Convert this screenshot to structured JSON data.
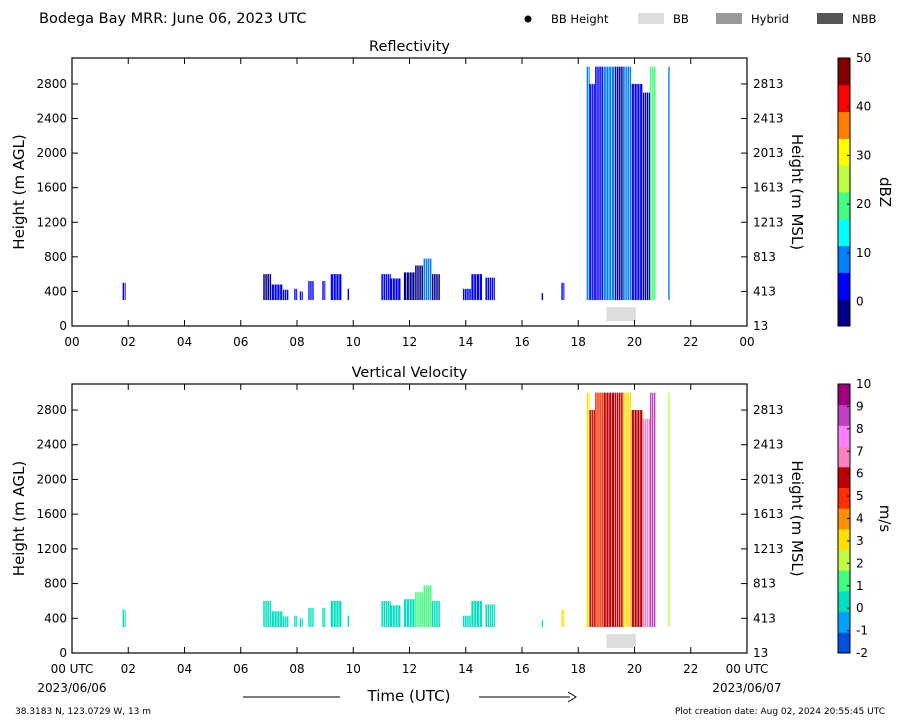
{
  "header": {
    "title": "Bodega Bay MRR:  June 06, 2023 UTC",
    "legend": [
      {
        "label": "BB Height",
        "kind": "dot",
        "color": "#000000"
      },
      {
        "label": "BB",
        "kind": "box",
        "color": "#dddddd"
      },
      {
        "label": "Hybrid",
        "kind": "box",
        "color": "#999999"
      },
      {
        "label": "NBB",
        "kind": "box",
        "color": "#555555"
      }
    ]
  },
  "footer": {
    "location": "38.3183 N, 123.0729 W, 13 m",
    "creation": "Plot creation date: Aug 02, 2024 20:55:45 UTC",
    "xlabel": "Time (UTC)",
    "start_date": "2023/06/06",
    "end_date": "2023/06/07"
  },
  "chart_data": [
    {
      "type": "heatmap",
      "title": "Reflectivity",
      "ylabel": "Height (m AGL)",
      "ylabel_right": "Height (m MSL)",
      "yticks": [
        0,
        400,
        800,
        1200,
        1600,
        2000,
        2400,
        2800
      ],
      "yticks_right": [
        "13",
        "413",
        "813",
        "1213",
        "1613",
        "2013",
        "2413",
        "2813"
      ],
      "xticks": [
        "00",
        "02",
        "04",
        "06",
        "08",
        "10",
        "12",
        "14",
        "16",
        "18",
        "20",
        "22",
        "00"
      ],
      "xlim": [
        0,
        24
      ],
      "ylim": [
        0,
        3100
      ],
      "colorbar": {
        "label": "dBZ",
        "range": [
          -5,
          50
        ],
        "ticks": [
          0,
          10,
          20,
          30,
          40,
          50
        ],
        "colors": [
          "#00008b",
          "#0000ff",
          "#0080ff",
          "#00ffff",
          "#40ff80",
          "#c0ff40",
          "#ffff00",
          "#ff8000",
          "#ff0000",
          "#800000"
        ]
      },
      "bb_markers": [
        {
          "start": 19.0,
          "end": 20.05
        }
      ],
      "cells": [
        {
          "t0": 1.8,
          "t1": 1.9,
          "h1": 500,
          "v": 2
        },
        {
          "t0": 6.8,
          "t1": 7.1,
          "h1": 600,
          "v": 0
        },
        {
          "t0": 7.1,
          "t1": 7.5,
          "h1": 480,
          "v": 1
        },
        {
          "t0": 7.5,
          "t1": 7.7,
          "h1": 420,
          "v": 2
        },
        {
          "t0": 7.9,
          "t1": 8.0,
          "h1": 430,
          "v": 1
        },
        {
          "t0": 8.1,
          "t1": 8.2,
          "h1": 400,
          "v": 1
        },
        {
          "t0": 8.4,
          "t1": 8.6,
          "h1": 520,
          "v": 2
        },
        {
          "t0": 8.9,
          "t1": 9.0,
          "h1": 520,
          "v": 1
        },
        {
          "t0": 9.2,
          "t1": 9.6,
          "h1": 600,
          "v": 1
        },
        {
          "t0": 9.8,
          "t1": 9.85,
          "h1": 430,
          "v": 1
        },
        {
          "t0": 11.0,
          "t1": 11.3,
          "h1": 600,
          "v": 1
        },
        {
          "t0": 11.3,
          "t1": 11.7,
          "h1": 550,
          "v": 1
        },
        {
          "t0": 11.8,
          "t1": 12.2,
          "h1": 620,
          "v": 0
        },
        {
          "t0": 12.2,
          "t1": 12.5,
          "h1": 700,
          "v": 0
        },
        {
          "t0": 12.5,
          "t1": 12.8,
          "h1": 780,
          "v": 6
        },
        {
          "t0": 12.8,
          "t1": 13.1,
          "h1": 600,
          "v": 0
        },
        {
          "t0": 13.9,
          "t1": 14.2,
          "h1": 430,
          "v": 1
        },
        {
          "t0": 14.2,
          "t1": 14.6,
          "h1": 600,
          "v": 1
        },
        {
          "t0": 14.7,
          "t1": 15.0,
          "h1": 560,
          "v": 1
        },
        {
          "t0": 16.7,
          "t1": 16.75,
          "h1": 380,
          "v": 0
        },
        {
          "t0": 17.4,
          "t1": 17.5,
          "h1": 500,
          "v": 1
        },
        {
          "t0": 18.3,
          "t1": 18.4,
          "h1": 3000,
          "v": 9
        },
        {
          "t0": 18.4,
          "t1": 18.6,
          "h1": 2800,
          "v": 1
        },
        {
          "t0": 18.6,
          "t1": 18.9,
          "h1": 3000,
          "v": 1
        },
        {
          "t0": 18.9,
          "t1": 19.3,
          "h1": 3000,
          "v": 10
        },
        {
          "t0": 19.3,
          "t1": 19.6,
          "h1": 3000,
          "v": 0
        },
        {
          "t0": 19.6,
          "t1": 19.9,
          "h1": 3000,
          "v": 10
        },
        {
          "t0": 19.9,
          "t1": 20.3,
          "h1": 2800,
          "v": 1
        },
        {
          "t0": 20.3,
          "t1": 20.55,
          "h1": 2700,
          "v": 0
        },
        {
          "t0": 20.55,
          "t1": 20.75,
          "h1": 3000,
          "v": 20
        },
        {
          "t0": 21.2,
          "t1": 21.25,
          "h1": 3000,
          "v": 8
        }
      ]
    },
    {
      "type": "heatmap",
      "title": "Vertical Velocity",
      "ylabel": "Height (m AGL)",
      "ylabel_right": "Height (m MSL)",
      "yticks": [
        0,
        400,
        800,
        1200,
        1600,
        2000,
        2400,
        2800
      ],
      "yticks_right": [
        "13",
        "413",
        "813",
        "1213",
        "1613",
        "2013",
        "2413",
        "2813"
      ],
      "xticks": [
        "00 UTC",
        "02",
        "04",
        "06",
        "08",
        "10",
        "12",
        "14",
        "16",
        "18",
        "20",
        "22",
        "00 UTC"
      ],
      "xlim": [
        0,
        24
      ],
      "ylim": [
        0,
        3100
      ],
      "colorbar": {
        "label": "m/s",
        "range": [
          -2,
          10
        ],
        "ticks": [
          -2,
          -1,
          0,
          1,
          2,
          3,
          4,
          5,
          6,
          7,
          8,
          9,
          10
        ],
        "colors": [
          "#0050e0",
          "#00a0ff",
          "#00e0c0",
          "#40ff80",
          "#c0ff40",
          "#ffe000",
          "#ff9000",
          "#ff3000",
          "#c00000",
          "#ff80c0",
          "#ff80ff",
          "#c040c0",
          "#a0007f"
        ]
      },
      "bb_markers": [
        {
          "start": 19.0,
          "end": 20.05
        }
      ],
      "cells": [
        {
          "t0": 1.8,
          "t1": 1.9,
          "h1": 500,
          "v": 0.4
        },
        {
          "t0": 6.8,
          "t1": 7.1,
          "h1": 600,
          "v": 0.5
        },
        {
          "t0": 7.1,
          "t1": 7.5,
          "h1": 480,
          "v": 0.5
        },
        {
          "t0": 7.5,
          "t1": 7.7,
          "h1": 420,
          "v": 0.6
        },
        {
          "t0": 7.9,
          "t1": 8.0,
          "h1": 430,
          "v": 0.5
        },
        {
          "t0": 8.1,
          "t1": 8.2,
          "h1": 400,
          "v": 0.5
        },
        {
          "t0": 8.4,
          "t1": 8.6,
          "h1": 520,
          "v": 0.5
        },
        {
          "t0": 8.9,
          "t1": 9.0,
          "h1": 520,
          "v": 0.5
        },
        {
          "t0": 9.2,
          "t1": 9.6,
          "h1": 600,
          "v": 0.6
        },
        {
          "t0": 9.8,
          "t1": 9.85,
          "h1": 430,
          "v": 0.5
        },
        {
          "t0": 11.0,
          "t1": 11.3,
          "h1": 600,
          "v": 0.5
        },
        {
          "t0": 11.3,
          "t1": 11.7,
          "h1": 550,
          "v": 0.6
        },
        {
          "t0": 11.8,
          "t1": 12.2,
          "h1": 620,
          "v": 0.5
        },
        {
          "t0": 12.2,
          "t1": 12.5,
          "h1": 700,
          "v": 0.8
        },
        {
          "t0": 12.5,
          "t1": 12.8,
          "h1": 780,
          "v": 1.2
        },
        {
          "t0": 12.8,
          "t1": 13.1,
          "h1": 600,
          "v": 0.7
        },
        {
          "t0": 13.9,
          "t1": 14.2,
          "h1": 430,
          "v": 0.5
        },
        {
          "t0": 14.2,
          "t1": 14.6,
          "h1": 600,
          "v": 0.5
        },
        {
          "t0": 14.7,
          "t1": 15.0,
          "h1": 560,
          "v": 0.5
        },
        {
          "t0": 16.7,
          "t1": 16.75,
          "h1": 380,
          "v": 0.5
        },
        {
          "t0": 17.4,
          "t1": 17.5,
          "h1": 500,
          "v": 3.5
        },
        {
          "t0": 18.3,
          "t1": 18.4,
          "h1": 3000,
          "v": 3.5
        },
        {
          "t0": 18.4,
          "t1": 18.6,
          "h1": 2800,
          "v": 5.5
        },
        {
          "t0": 18.6,
          "t1": 18.9,
          "h1": 3000,
          "v": 4.5
        },
        {
          "t0": 18.9,
          "t1": 19.3,
          "h1": 3000,
          "v": 5.5
        },
        {
          "t0": 19.3,
          "t1": 19.6,
          "h1": 3000,
          "v": 6.2
        },
        {
          "t0": 19.6,
          "t1": 19.9,
          "h1": 3000,
          "v": 3.5
        },
        {
          "t0": 19.9,
          "t1": 20.3,
          "h1": 2800,
          "v": 5.8
        },
        {
          "t0": 20.3,
          "t1": 20.55,
          "h1": 2700,
          "v": 6.5
        },
        {
          "t0": 20.55,
          "t1": 20.75,
          "h1": 3000,
          "v": 8.5
        },
        {
          "t0": 21.2,
          "t1": 21.25,
          "h1": 3000,
          "v": 2.5
        }
      ]
    }
  ]
}
